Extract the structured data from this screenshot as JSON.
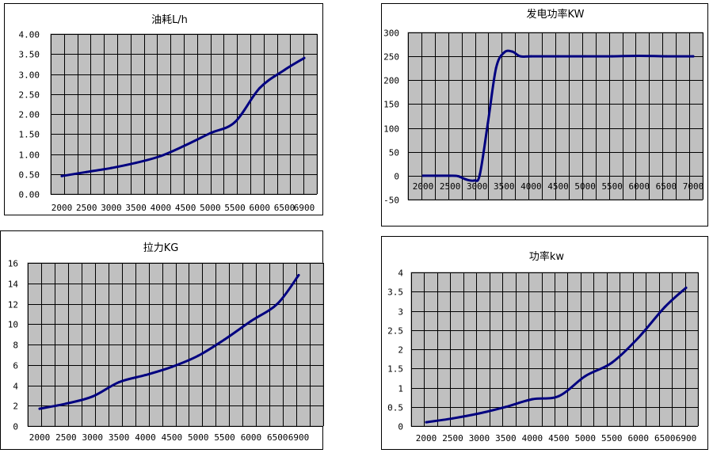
{
  "chart_data": [
    {
      "type": "line",
      "title": "油耗L/h",
      "xlabel": "",
      "ylabel": "",
      "categories": [
        "2000",
        "2500",
        "3000",
        "3500",
        "4000",
        "4500",
        "5000",
        "5500",
        "6000",
        "6500",
        "6900"
      ],
      "yticks": [
        "4.00",
        "3.50",
        "3.00",
        "2.50",
        "2.00",
        "1.50",
        "1.00",
        "0.50",
        "0.00"
      ],
      "ylim": [
        0,
        4
      ],
      "grid": true,
      "series": [
        {
          "name": "",
          "color": "#000080",
          "x": [
            2000,
            2500,
            3000,
            3500,
            4000,
            4500,
            5000,
            5500,
            6000,
            6500,
            6900
          ],
          "values": [
            0.45,
            0.55,
            0.65,
            0.78,
            0.95,
            1.22,
            1.52,
            1.8,
            2.65,
            3.1,
            3.4
          ]
        }
      ]
    },
    {
      "type": "line",
      "title": "发电功率KW",
      "xlabel": "",
      "ylabel": "",
      "categories": [
        "2000",
        "2500",
        "3000",
        "3500",
        "4000",
        "4500",
        "5000",
        "5500",
        "6000",
        "6500",
        "7000"
      ],
      "yticks": [
        "300",
        "250",
        "200",
        "150",
        "100",
        "50",
        "0",
        "-50"
      ],
      "ylim": [
        -50,
        300
      ],
      "x_axis_at": 0,
      "grid": true,
      "series": [
        {
          "name": "",
          "color": "#000080",
          "x": [
            2000,
            2250,
            2500,
            2650,
            2800,
            2950,
            3050,
            3200,
            3350,
            3500,
            3650,
            3800,
            4000,
            4500,
            5000,
            5500,
            6000,
            6500,
            7000
          ],
          "values": [
            0,
            0,
            0,
            -1,
            -8,
            -10,
            2,
            110,
            225,
            258,
            260,
            250,
            250,
            250,
            250,
            250,
            251,
            250,
            250
          ]
        }
      ]
    },
    {
      "type": "line",
      "title": "拉力KG",
      "xlabel": "",
      "ylabel": "",
      "categories": [
        "2000",
        "2500",
        "3000",
        "3500",
        "4000",
        "4500",
        "5000",
        "5500",
        "6000",
        "6500",
        "6900"
      ],
      "yticks": [
        "16",
        "14",
        "12",
        "10",
        "8",
        "6",
        "4",
        "2",
        "0"
      ],
      "ylim": [
        0,
        16
      ],
      "grid": true,
      "series": [
        {
          "name": "",
          "color": "#000080",
          "x": [
            2000,
            2500,
            3000,
            3500,
            4000,
            4500,
            5000,
            5500,
            6000,
            6500,
            6900
          ],
          "values": [
            1.7,
            2.2,
            2.9,
            4.3,
            5.0,
            5.8,
            6.9,
            8.5,
            10.3,
            12.0,
            14.8
          ]
        }
      ]
    },
    {
      "type": "line",
      "title": "功率kw",
      "xlabel": "",
      "ylabel": "",
      "categories": [
        "2000",
        "2500",
        "3000",
        "3500",
        "4000",
        "4500",
        "5000",
        "5500",
        "6000",
        "6500",
        "6900"
      ],
      "yticks": [
        "4",
        "3.5",
        "3",
        "2.5",
        "2",
        "1.5",
        "1",
        "0.5",
        "0"
      ],
      "ylim": [
        0,
        4
      ],
      "grid": true,
      "series": [
        {
          "name": "",
          "color": "#000080",
          "x": [
            2000,
            2500,
            3000,
            3500,
            4000,
            4500,
            5000,
            5500,
            6000,
            6500,
            6900
          ],
          "values": [
            0.1,
            0.2,
            0.33,
            0.5,
            0.7,
            0.78,
            1.3,
            1.65,
            2.3,
            3.1,
            3.6
          ]
        }
      ]
    }
  ]
}
